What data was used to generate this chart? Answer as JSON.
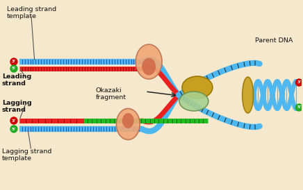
{
  "bg_color": "#f5e8cc",
  "labels": {
    "leading_strand_template": "Leading strand\ntemplate",
    "leading_strand": "Leading\nstrand",
    "lagging_strand": "Lagging\nstrand",
    "lagging_strand_template": "Lagging strand\ntemplate",
    "okazaki_fragment": "Okazaki\nfragment",
    "parent_dna": "Parent DNA"
  },
  "colors": {
    "blue_strand": "#4db8f0",
    "red_strand": "#e82020",
    "green_strand": "#22bb22",
    "polymerase_body": "#f0a878",
    "polymerase_inner": "#d06848",
    "helicase_gold": "#c8a020",
    "helicase_green": "#a8d090",
    "clamp_gold": "#c8a020",
    "text_color": "#111111",
    "tick_dark": "#223388",
    "tick_red": "#880000",
    "end_3_color": "#cc0000",
    "end_5_color": "#22aa22",
    "dna_helix": "#50b8f0",
    "arrow_color": "#222222"
  },
  "figsize": [
    4.36,
    2.74
  ],
  "dpi": 100
}
